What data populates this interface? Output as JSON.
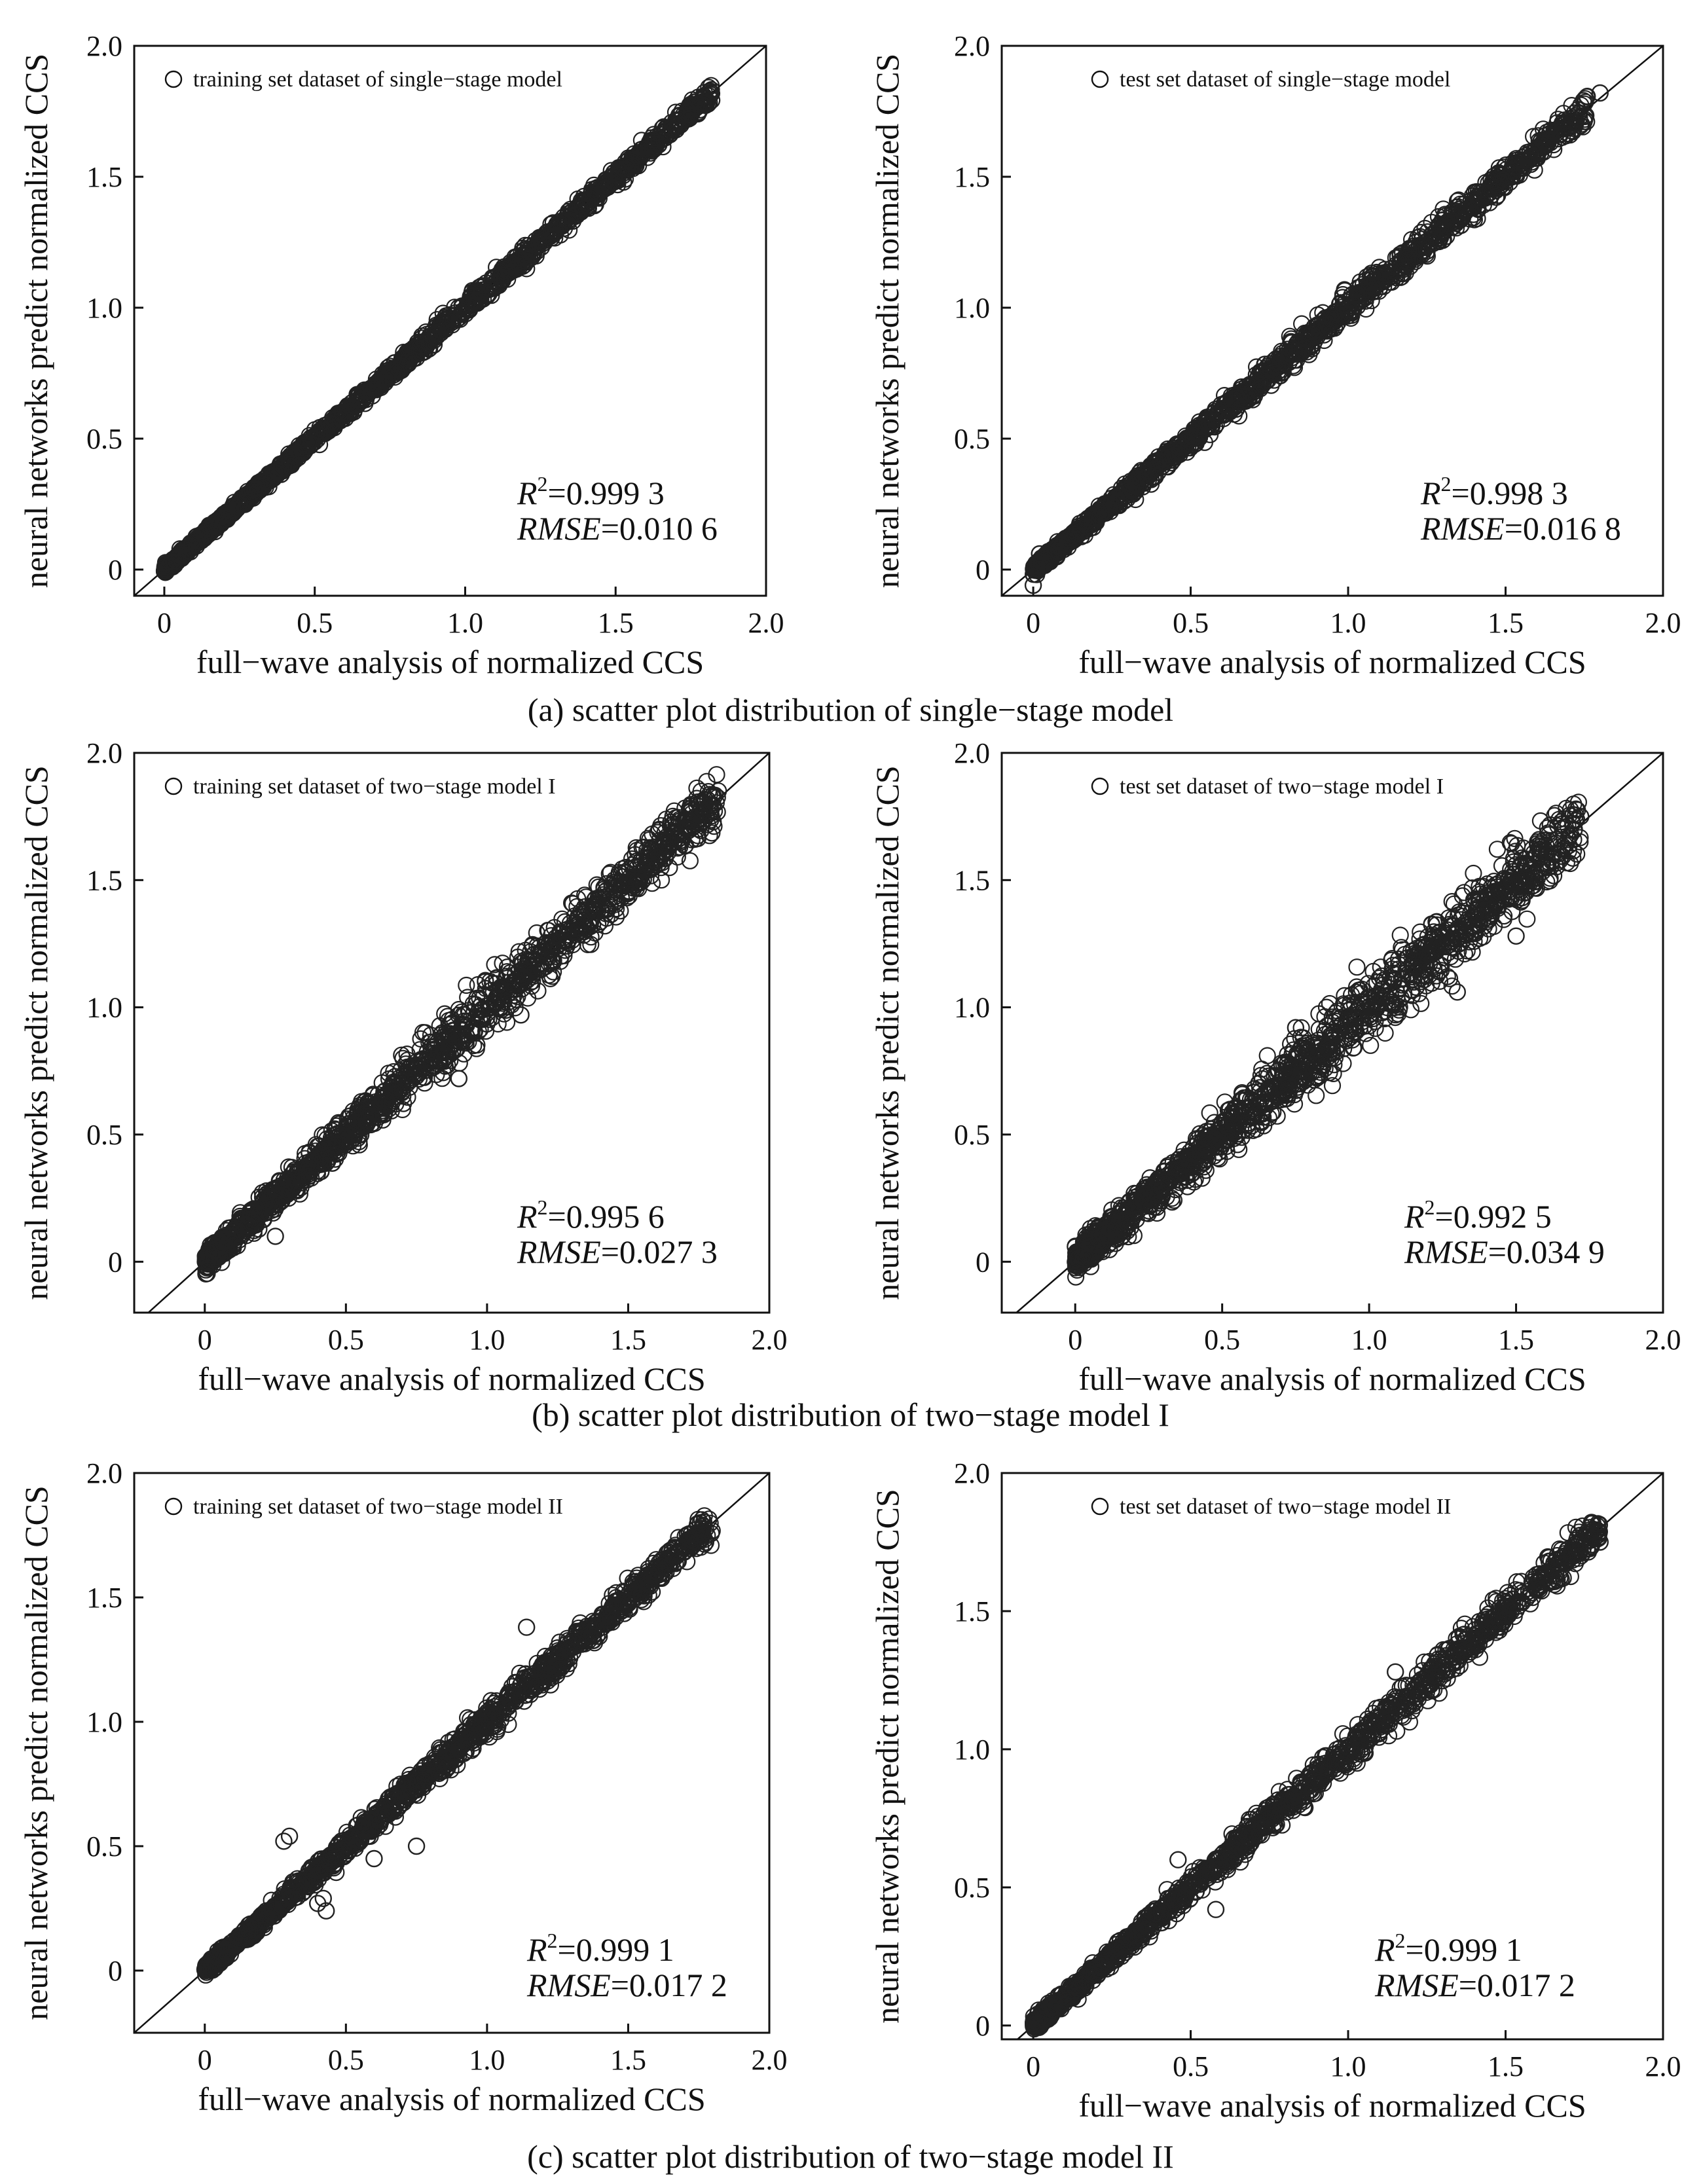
{
  "chart_data": [
    {
      "type": "scatter",
      "panel": "a",
      "xlabel": "full−wave analysis of normalized CCS",
      "ylabel": "neural networks predict normalized CCS",
      "xlim": [
        -0.1,
        2.0
      ],
      "ylim": [
        -0.1,
        2.0
      ],
      "xticks": [
        "0",
        "0.5",
        "1.0",
        "1.5",
        "2.0"
      ],
      "yticks": [
        "0",
        "0.5",
        "1.0",
        "1.5",
        "2.0"
      ],
      "legend": "training set dataset of single−stage model",
      "legend_position": "top-left",
      "r2_label": "R",
      "r2_value": "=0.999 3",
      "rmse_label": "RMSE",
      "rmse_value": "=0.010 6",
      "spread": 0.012,
      "xmax": 1.82,
      "seed": 11,
      "outliers": [],
      "series": [
        {
          "name": "training set dataset of single−stage model",
          "marker": "open-circle"
        }
      ],
      "reference_line": "y = x"
    },
    {
      "type": "scatter",
      "panel": "a",
      "xlabel": "full−wave analysis of normalized CCS",
      "ylabel": "neural networks predict normalized CCS",
      "xlim": [
        -0.1,
        2.0
      ],
      "ylim": [
        -0.1,
        2.0
      ],
      "xticks": [
        "0",
        "0.5",
        "1.0",
        "1.5",
        "2.0"
      ],
      "yticks": [
        "0",
        "0.5",
        "1.0",
        "1.5",
        "2.0"
      ],
      "legend": "test set dataset of single−stage model",
      "legend_position": "top-left",
      "r2_label": "R",
      "r2_value": "=0.998 3",
      "rmse_label": "RMSE",
      "rmse_value": "=0.016 8",
      "spread": 0.018,
      "xmax": 1.76,
      "seed": 23,
      "outliers": [
        [
          0.0,
          -0.06
        ],
        [
          0.02,
          0.06
        ],
        [
          1.8,
          1.82
        ]
      ],
      "series": [
        {
          "name": "test set dataset of single−stage model",
          "marker": "open-circle"
        }
      ],
      "reference_line": "y = x"
    },
    {
      "type": "scatter",
      "panel": "b",
      "xlabel": "full−wave analysis of normalized CCS",
      "ylabel": "neural networks predict normalized CCS",
      "xlim": [
        -0.25,
        2.0
      ],
      "ylim": [
        -0.2,
        2.0
      ],
      "xticks": [
        "0",
        "0.5",
        "1.0",
        "1.5",
        "2.0"
      ],
      "yticks": [
        "0",
        "0.5",
        "1.0",
        "1.5",
        "2.0"
      ],
      "legend": "training set dataset of two−stage model I",
      "legend_position": "top-left",
      "r2_label": "R",
      "r2_value": "=0.995 6",
      "rmse_label": "RMSE",
      "rmse_value": "=0.027 3",
      "spread": 0.035,
      "xmax": 1.82,
      "seed": 37,
      "outliers": [
        [
          1.12,
          0.97
        ],
        [
          1.05,
          1.08
        ],
        [
          0.9,
          0.72
        ],
        [
          0.25,
          0.1
        ]
      ],
      "series": [
        {
          "name": "training set dataset of two−stage model I",
          "marker": "open-circle"
        }
      ],
      "reference_line": "y = x"
    },
    {
      "type": "scatter",
      "panel": "b",
      "xlabel": "full−wave analysis of normalized CCS",
      "ylabel": "neural networks predict normalized CCS",
      "xlim": [
        -0.25,
        2.0
      ],
      "ylim": [
        -0.2,
        2.0
      ],
      "xticks": [
        "0",
        "0.5",
        "1.0",
        "1.5",
        "2.0"
      ],
      "yticks": [
        "0",
        "0.5",
        "1.0",
        "1.5",
        "2.0"
      ],
      "legend": "test set dataset of two−stage model I",
      "legend_position": "top-left",
      "r2_label": "R",
      "r2_value": "=0.992 5",
      "rmse_label": "RMSE",
      "rmse_value": "=0.034 9",
      "spread": 0.045,
      "xmax": 1.72,
      "seed": 41,
      "outliers": [
        [
          1.5,
          1.28
        ],
        [
          1.3,
          1.06
        ],
        [
          0.75,
          0.92
        ],
        [
          1.72,
          1.75
        ]
      ],
      "series": [
        {
          "name": "test set dataset of two−stage model I",
          "marker": "open-circle"
        }
      ],
      "reference_line": "y = x"
    },
    {
      "type": "scatter",
      "panel": "c",
      "xlabel": "full−wave analysis of normalized CCS",
      "ylabel": "neural networks predict normalized CCS",
      "xlim": [
        -0.25,
        2.0
      ],
      "ylim": [
        -0.25,
        2.0
      ],
      "xticks": [
        "0",
        "0.5",
        "1.0",
        "1.5",
        "2.0"
      ],
      "yticks": [
        "0",
        "0.5",
        "1.0",
        "1.5",
        "2.0"
      ],
      "legend": "training set dataset of two−stage model II",
      "legend_position": "top-left",
      "r2_label": "R",
      "r2_value": "=0.999 1",
      "rmse_label": "RMSE",
      "rmse_value": "=0.017 2",
      "spread": 0.02,
      "xmax": 1.8,
      "seed": 53,
      "outliers": [
        [
          0.28,
          0.52
        ],
        [
          0.3,
          0.54
        ],
        [
          0.43,
          0.24
        ],
        [
          0.42,
          0.29
        ],
        [
          0.4,
          0.27
        ],
        [
          0.75,
          0.5
        ],
        [
          1.14,
          1.38
        ],
        [
          0.6,
          0.45
        ]
      ],
      "series": [
        {
          "name": "training set dataset of two−stage model II",
          "marker": "open-circle"
        }
      ],
      "reference_line": "y = x"
    },
    {
      "type": "scatter",
      "panel": "c",
      "xlabel": "full−wave analysis of normalized CCS",
      "ylabel": "neural networks predict normalized CCS",
      "xlim": [
        -0.1,
        2.0
      ],
      "ylim": [
        -0.05,
        2.0
      ],
      "xticks": [
        "0",
        "0.5",
        "1.0",
        "1.5",
        "2.0"
      ],
      "yticks": [
        "0",
        "0.5",
        "1.0",
        "1.5",
        "2.0"
      ],
      "legend": "test set dataset of two−stage model II",
      "legend_position": "top-left",
      "r2_label": "R",
      "r2_value": "=0.999 1",
      "rmse_label": "RMSE",
      "rmse_value": "=0.017 2",
      "spread": 0.02,
      "xmax": 1.8,
      "seed": 67,
      "outliers": [
        [
          0.58,
          0.42
        ],
        [
          1.15,
          1.28
        ],
        [
          0.46,
          0.6
        ],
        [
          1.75,
          1.75
        ],
        [
          1.8,
          1.75
        ]
      ],
      "series": [
        {
          "name": "test set dataset of two−stage model II",
          "marker": "open-circle"
        }
      ],
      "reference_line": "y = x"
    }
  ],
  "captions": {
    "a": "(a) scatter plot distribution of single−stage model",
    "b": "(b) scatter plot distribution of two−stage model I",
    "c": "(c)  scatter plot distribution of two−stage model II"
  }
}
